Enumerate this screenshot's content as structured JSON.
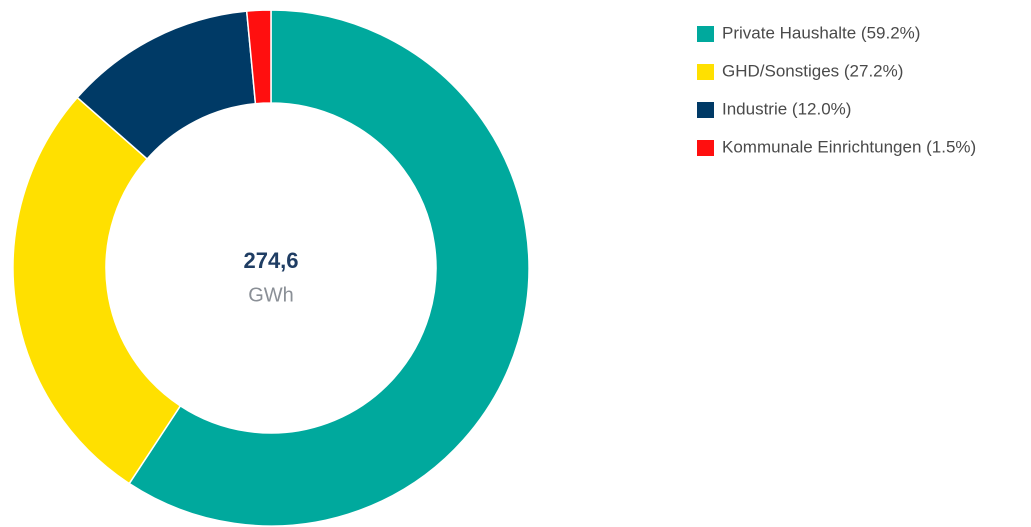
{
  "chart_data": {
    "type": "donut",
    "categories": [
      "Private Haushalte (59.2%)",
      "GHD/Sonstiges (27.2%)",
      "Industrie (12.0%)",
      "Kommunale Einrichtungen (1.5%)"
    ],
    "values": [
      59.2,
      27.2,
      12.0,
      1.5
    ],
    "colors": [
      "#00a99d",
      "#ffe000",
      "#003a66",
      "#ff0f0f"
    ],
    "total": {
      "value": 274.6,
      "label": "274,6"
    },
    "unit": "GWh",
    "legend": "top-right"
  }
}
